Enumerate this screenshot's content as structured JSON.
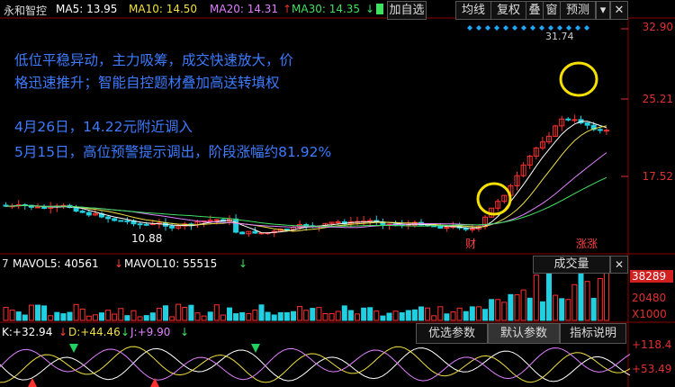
{
  "header": {
    "stock_name": "永和智控",
    "ma5_label": "MA5:",
    "ma5_value": "13.95",
    "ma10_label": "MA10:",
    "ma10_value": "14.50",
    "ma20_label": "MA20:",
    "ma20_value": "14.31",
    "ma30_label": "MA30:",
    "ma30_value": "14.35",
    "buttons": [
      "加自选",
      "均线",
      "复权",
      "叠",
      "窗",
      "预测"
    ],
    "close_glyph": "✕",
    "colors": {
      "ma5": "#ffffff",
      "ma10": "#f0e040",
      "ma20": "#e080ff",
      "ma30": "#40e060"
    }
  },
  "annotation": {
    "line1": "低位平稳异动，主力吸筹，成交快速放大，价",
    "line2": "格迅速推升；智能自控题材叠加高送转填权",
    "line3": "4月26日，14.22元附近调入",
    "line4": "5月15日，高位预警提示调出，阶段涨幅约81.92%"
  },
  "price_axis": {
    "top": "32.90",
    "mid_high": "25.21",
    "mid_low": "17.52"
  },
  "chart_labels": {
    "low": "10.88",
    "high": "31.74",
    "marker_cai": "财",
    "marker_zhang": "涨",
    "marker_zhang2": "涨"
  },
  "volume": {
    "prefix": "7",
    "mavol5_label": "MAVOL5:",
    "mavol5_value": "40561",
    "mavol10_label": "MAVOL10:",
    "mavol10_value": "55515",
    "indicator": "成交量",
    "axis_top": "38289",
    "axis_mid": "20480",
    "axis_unit": "X1000"
  },
  "kdj": {
    "k_label": "K:",
    "k_value": "+32.94",
    "d_label": "D:",
    "d_value": "+44.46",
    "j_label": "J:",
    "j_value": "+9.90",
    "axis_top": "+118.4",
    "axis_bottom": "+53.49"
  },
  "tabs": [
    "优选参数",
    "默认参数",
    "指标说明"
  ]
}
